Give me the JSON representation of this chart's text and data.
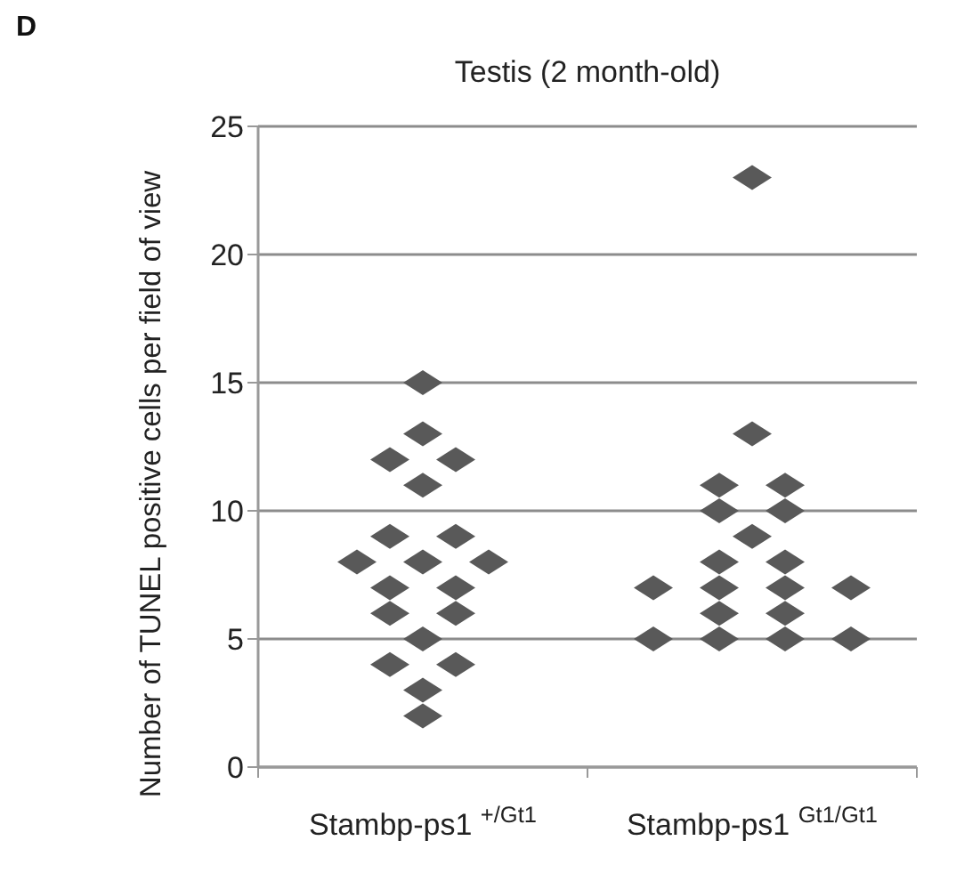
{
  "chart_data": {
    "type": "scatter",
    "title": "Testis (2 month-old)",
    "ylabel": "Number of TUNEL positive cells per field of view",
    "annotations": [
      "D"
    ],
    "categories": [
      "Stambp-ps1 $^{+/Gt1}$",
      "Stambp-ps1 $^{Gt1/Gt1}$"
    ],
    "ylim": [
      0,
      25
    ],
    "yticks": [
      0,
      5,
      10,
      15,
      20,
      25
    ],
    "grid": "y",
    "marker": "diamond",
    "legend": false,
    "series": [
      {
        "color": "#595959",
        "x": [
          "Stambp-ps1 $^{+/Gt1}$",
          "Stambp-ps1 $^{+/Gt1}$",
          "Stambp-ps1 $^{+/Gt1}$",
          "Stambp-ps1 $^{+/Gt1}$",
          "Stambp-ps1 $^{+/Gt1}$",
          "Stambp-ps1 $^{+/Gt1}$",
          "Stambp-ps1 $^{+/Gt1}$",
          "Stambp-ps1 $^{+/Gt1}$",
          "Stambp-ps1 $^{+/Gt1}$",
          "Stambp-ps1 $^{+/Gt1}$",
          "Stambp-ps1 $^{+/Gt1}$",
          "Stambp-ps1 $^{+/Gt1}$",
          "Stambp-ps1 $^{+/Gt1}$",
          "Stambp-ps1 $^{+/Gt1}$",
          "Stambp-ps1 $^{+/Gt1}$",
          "Stambp-ps1 $^{+/Gt1}$",
          "Stambp-ps1 $^{+/Gt1}$",
          "Stambp-ps1 $^{+/Gt1}$",
          "Stambp-ps1 $^{+/Gt1}$"
        ],
        "values": [
          15,
          13,
          12,
          12,
          11,
          9,
          9,
          8,
          8,
          8,
          7,
          7,
          6,
          6,
          5,
          4,
          4,
          3,
          2
        ]
      },
      {
        "color": "#595959",
        "x": [
          "Stambp-ps1 $^{Gt1/Gt1}$",
          "Stambp-ps1 $^{Gt1/Gt1}$",
          "Stambp-ps1 $^{Gt1/Gt1}$",
          "Stambp-ps1 $^{Gt1/Gt1}$",
          "Stambp-ps1 $^{Gt1/Gt1}$",
          "Stambp-ps1 $^{Gt1/Gt1}$",
          "Stambp-ps1 $^{Gt1/Gt1}$",
          "Stambp-ps1 $^{Gt1/Gt1}$",
          "Stambp-ps1 $^{Gt1/Gt1}$",
          "Stambp-ps1 $^{Gt1/Gt1}$",
          "Stambp-ps1 $^{Gt1/Gt1}$",
          "Stambp-ps1 $^{Gt1/Gt1}$",
          "Stambp-ps1 $^{Gt1/Gt1}$",
          "Stambp-ps1 $^{Gt1/Gt1}$",
          "Stambp-ps1 $^{Gt1/Gt1}$",
          "Stambp-ps1 $^{Gt1/Gt1}$",
          "Stambp-ps1 $^{Gt1/Gt1}$",
          "Stambp-ps1 $^{Gt1/Gt1}$",
          "Stambp-ps1 $^{Gt1/Gt1}$"
        ],
        "values": [
          23,
          13,
          11,
          11,
          10,
          10,
          9,
          8,
          8,
          7,
          7,
          7,
          7,
          6,
          6,
          5,
          5,
          5,
          5
        ]
      }
    ]
  }
}
